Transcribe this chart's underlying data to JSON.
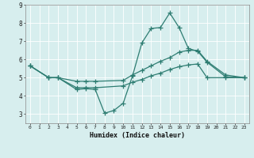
{
  "xlabel": "Humidex (Indice chaleur)",
  "background_color": "#d7eeee",
  "grid_color": "#ffffff",
  "line_color": "#2e7d72",
  "xlim": [
    -0.5,
    23.5
  ],
  "ylim": [
    2.5,
    9.0
  ],
  "xticks": [
    0,
    1,
    2,
    3,
    4,
    5,
    6,
    7,
    8,
    9,
    10,
    11,
    12,
    13,
    14,
    15,
    16,
    17,
    18,
    19,
    20,
    21,
    22,
    23
  ],
  "yticks": [
    3,
    4,
    5,
    6,
    7,
    8,
    9
  ],
  "line1_x": [
    0,
    2,
    3,
    5,
    6,
    7,
    8,
    9,
    10,
    11,
    12,
    13,
    14,
    15,
    16,
    17,
    18,
    19,
    21,
    23
  ],
  "line1_y": [
    5.65,
    5.0,
    5.0,
    4.35,
    4.4,
    4.35,
    3.05,
    3.2,
    3.6,
    5.1,
    6.9,
    7.7,
    7.75,
    8.55,
    7.75,
    6.6,
    6.45,
    5.85,
    5.05,
    5.0
  ],
  "line2_x": [
    0,
    2,
    3,
    5,
    6,
    7,
    10,
    11,
    12,
    13,
    14,
    15,
    16,
    17,
    18,
    19,
    21,
    23
  ],
  "line2_y": [
    5.65,
    5.0,
    5.0,
    4.8,
    4.8,
    4.8,
    4.85,
    5.15,
    5.4,
    5.65,
    5.9,
    6.1,
    6.4,
    6.5,
    6.5,
    5.9,
    5.15,
    5.0
  ],
  "line3_x": [
    0,
    2,
    3,
    5,
    6,
    7,
    10,
    11,
    12,
    13,
    14,
    15,
    16,
    17,
    18,
    19,
    21,
    23
  ],
  "line3_y": [
    5.65,
    5.0,
    5.0,
    4.45,
    4.45,
    4.45,
    4.55,
    4.75,
    4.9,
    5.1,
    5.25,
    5.45,
    5.6,
    5.7,
    5.75,
    5.0,
    5.0,
    5.0
  ],
  "figsize": [
    3.2,
    2.0
  ],
  "dpi": 100
}
